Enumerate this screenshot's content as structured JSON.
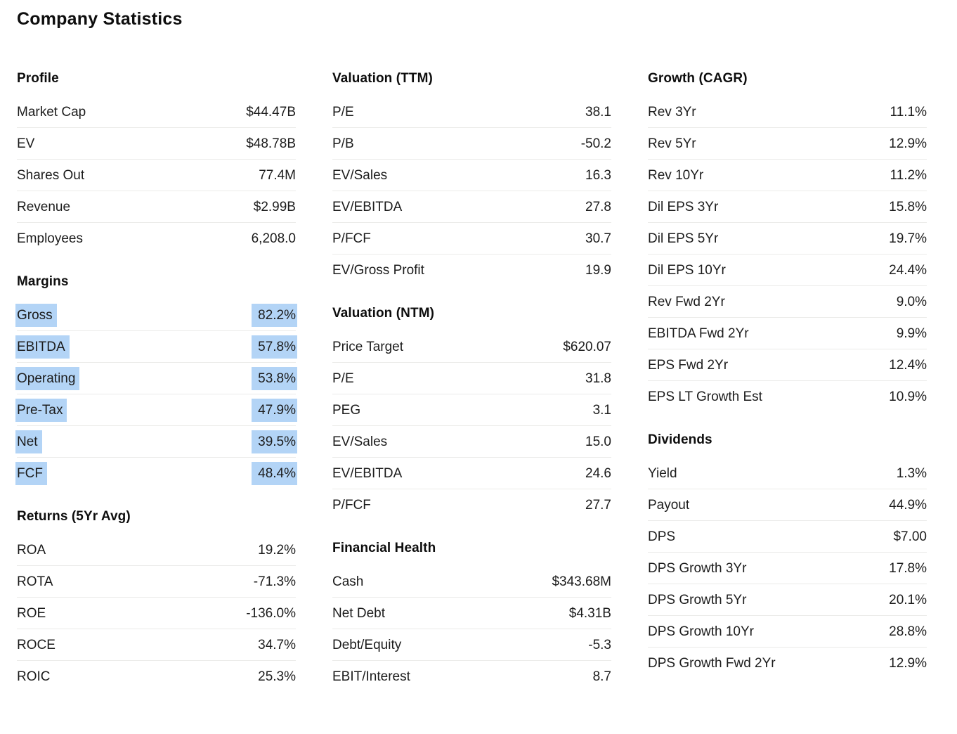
{
  "page": {
    "title": "Company Statistics"
  },
  "theme": {
    "highlight_color": "#b3d4f6",
    "divider_color": "#ebebe9",
    "text_color": "#1c1c1c",
    "heading_color": "#0e0e0e",
    "background_color": "#ffffff"
  },
  "columns": [
    {
      "sections": [
        {
          "title": "Profile",
          "highlighted": false,
          "rows": [
            {
              "label": "Market Cap",
              "value": "$44.47B"
            },
            {
              "label": "EV",
              "value": "$48.78B"
            },
            {
              "label": "Shares Out",
              "value": "77.4M"
            },
            {
              "label": "Revenue",
              "value": "$2.99B"
            },
            {
              "label": "Employees",
              "value": "6,208.0"
            }
          ]
        },
        {
          "title": "Margins",
          "highlighted": true,
          "rows": [
            {
              "label": "Gross",
              "value": "82.2%"
            },
            {
              "label": "EBITDA",
              "value": "57.8%"
            },
            {
              "label": "Operating",
              "value": "53.8%"
            },
            {
              "label": "Pre-Tax",
              "value": "47.9%"
            },
            {
              "label": "Net",
              "value": "39.5%"
            },
            {
              "label": "FCF",
              "value": "48.4%"
            }
          ]
        },
        {
          "title": "Returns (5Yr Avg)",
          "highlighted": false,
          "rows": [
            {
              "label": "ROA",
              "value": "19.2%"
            },
            {
              "label": "ROTA",
              "value": "-71.3%"
            },
            {
              "label": "ROE",
              "value": "-136.0%"
            },
            {
              "label": "ROCE",
              "value": "34.7%"
            },
            {
              "label": "ROIC",
              "value": "25.3%"
            }
          ]
        }
      ]
    },
    {
      "sections": [
        {
          "title": "Valuation (TTM)",
          "highlighted": false,
          "rows": [
            {
              "label": "P/E",
              "value": "38.1"
            },
            {
              "label": "P/B",
              "value": "-50.2"
            },
            {
              "label": "EV/Sales",
              "value": "16.3"
            },
            {
              "label": "EV/EBITDA",
              "value": "27.8"
            },
            {
              "label": "P/FCF",
              "value": "30.7"
            },
            {
              "label": "EV/Gross Profit",
              "value": "19.9"
            }
          ]
        },
        {
          "title": "Valuation (NTM)",
          "highlighted": false,
          "rows": [
            {
              "label": "Price Target",
              "value": "$620.07"
            },
            {
              "label": "P/E",
              "value": "31.8"
            },
            {
              "label": "PEG",
              "value": "3.1"
            },
            {
              "label": "EV/Sales",
              "value": "15.0"
            },
            {
              "label": "EV/EBITDA",
              "value": "24.6"
            },
            {
              "label": "P/FCF",
              "value": "27.7"
            }
          ]
        },
        {
          "title": "Financial Health",
          "highlighted": false,
          "rows": [
            {
              "label": "Cash",
              "value": "$343.68M"
            },
            {
              "label": "Net Debt",
              "value": "$4.31B"
            },
            {
              "label": "Debt/Equity",
              "value": "-5.3"
            },
            {
              "label": "EBIT/Interest",
              "value": "8.7"
            }
          ]
        }
      ]
    },
    {
      "sections": [
        {
          "title": "Growth (CAGR)",
          "highlighted": false,
          "rows": [
            {
              "label": "Rev 3Yr",
              "value": "11.1%"
            },
            {
              "label": "Rev 5Yr",
              "value": "12.9%"
            },
            {
              "label": "Rev 10Yr",
              "value": "11.2%"
            },
            {
              "label": "Dil EPS 3Yr",
              "value": "15.8%"
            },
            {
              "label": "Dil EPS 5Yr",
              "value": "19.7%"
            },
            {
              "label": "Dil EPS 10Yr",
              "value": "24.4%"
            },
            {
              "label": "Rev Fwd 2Yr",
              "value": "9.0%"
            },
            {
              "label": "EBITDA Fwd 2Yr",
              "value": "9.9%"
            },
            {
              "label": "EPS Fwd 2Yr",
              "value": "12.4%"
            },
            {
              "label": "EPS LT Growth Est",
              "value": "10.9%"
            }
          ]
        },
        {
          "title": "Dividends",
          "highlighted": false,
          "rows": [
            {
              "label": "Yield",
              "value": "1.3%"
            },
            {
              "label": "Payout",
              "value": "44.9%"
            },
            {
              "label": "DPS",
              "value": "$7.00"
            },
            {
              "label": "DPS Growth 3Yr",
              "value": "17.8%"
            },
            {
              "label": "DPS Growth 5Yr",
              "value": "20.1%"
            },
            {
              "label": "DPS Growth 10Yr",
              "value": "28.8%"
            },
            {
              "label": "DPS Growth Fwd 2Yr",
              "value": "12.9%"
            }
          ]
        }
      ]
    }
  ]
}
